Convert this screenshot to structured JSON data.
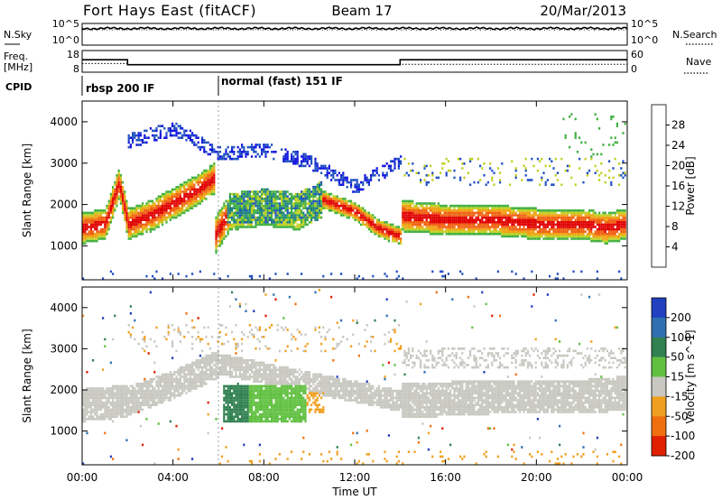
{
  "header": {
    "title": "Fort Hays East (fitACF)",
    "beam": "Beam 17",
    "date": "20/Mar/2013"
  },
  "top_panels": {
    "nsky_label": "N.Sky",
    "noise_ticks": [
      "10^5",
      "10^0"
    ],
    "nsearch_label": "N.Search",
    "freq_label": "Freq.",
    "freq_unit": "[MHz]",
    "freq_ticks": [
      "18",
      "8"
    ],
    "nave_ticks": [
      "60",
      "0"
    ],
    "nave_label": "Nave",
    "cpid_label": "CPID",
    "cpid_modes": [
      {
        "label": "rbsp 200 IF",
        "start": "00:00",
        "end": "06:00"
      },
      {
        "label": "normal (fast) 151 IF",
        "start": "06:00",
        "end": "24:00"
      }
    ]
  },
  "power_panel": {
    "ylabel": "Slant Range [km]",
    "yticks": [
      "1000",
      "2000",
      "3000",
      "4000"
    ],
    "colorbar_label": "Power [dB]",
    "colorbar_ticks": [
      "4",
      "8",
      "12",
      "16",
      "20",
      "24",
      "28"
    ],
    "colors": [
      "#1010e0",
      "#2050c0",
      "#208080",
      "#40b040",
      "#c0d020",
      "#f0a010",
      "#f06010",
      "#e00000"
    ]
  },
  "velocity_panel": {
    "ylabel": "Slant Range [km]",
    "yticks": [
      "1000",
      "2000",
      "3000",
      "4000"
    ],
    "colorbar_label": "Velocity [m s^-1]",
    "colorbar_ticks": [
      "200",
      "100",
      "50",
      "15",
      "-15",
      "-50",
      "-100",
      "-200"
    ],
    "colors": [
      "#2040c0",
      "#3070b0",
      "#308050",
      "#60c040",
      "#c8c8c0",
      "#f0a020",
      "#f07010",
      "#e02000"
    ]
  },
  "xaxis": {
    "ticks": [
      "00:00",
      "04:00",
      "08:00",
      "12:00",
      "16:00",
      "20:00",
      "00:00"
    ],
    "label": "Time UT"
  },
  "chart_data": {
    "type": "heatmap",
    "x_range_hours": [
      0,
      24
    ],
    "y_range_km": [
      180,
      4500
    ],
    "series": [
      {
        "name": "Freq.",
        "x": [
          0,
          2,
          2,
          14,
          14,
          24
        ],
        "y": [
          13.5,
          13.5,
          10.5,
          10.5,
          13.5,
          13.5
        ]
      },
      {
        "name": "Nave",
        "x": [
          0,
          2,
          2,
          14,
          14,
          24
        ],
        "y": [
          24,
          24,
          20,
          20,
          22,
          22
        ]
      }
    ],
    "power_bands": [
      {
        "x": [
          0,
          1,
          1.6,
          2,
          3,
          4,
          5,
          5.8
        ],
        "y": [
          1400,
          1500,
          2500,
          1500,
          1700,
          2000,
          2300,
          2600
        ],
        "level": "red"
      },
      {
        "x": [
          5.8,
          6.5,
          8,
          9.5,
          10.5,
          12,
          13,
          14
        ],
        "y": [
          1200,
          1800,
          1900,
          1800,
          2100,
          1800,
          1400,
          1200
        ],
        "level": "green"
      },
      {
        "x": [
          14,
          16,
          18,
          20,
          22,
          23,
          24
        ],
        "y": [
          1700,
          1600,
          1600,
          1500,
          1500,
          1400,
          1500
        ],
        "level": "red"
      },
      {
        "x": [
          2,
          4,
          6,
          8,
          10,
          12,
          14
        ],
        "y": [
          3500,
          3800,
          3200,
          3300,
          3000,
          2400,
          3000
        ],
        "level": "blue"
      }
    ],
    "velocity_bands": [
      {
        "x": [
          0,
          2,
          4,
          6,
          14,
          18,
          22,
          24
        ],
        "y": [
          1600,
          1700,
          2100,
          2600,
          1700,
          1800,
          1800,
          1900
        ],
        "level": "grey"
      },
      {
        "x": [
          6.2,
          7,
          8,
          9,
          9.8
        ],
        "y": [
          1300,
          1500,
          1500,
          1400,
          1500
        ],
        "level": "green"
      }
    ]
  }
}
